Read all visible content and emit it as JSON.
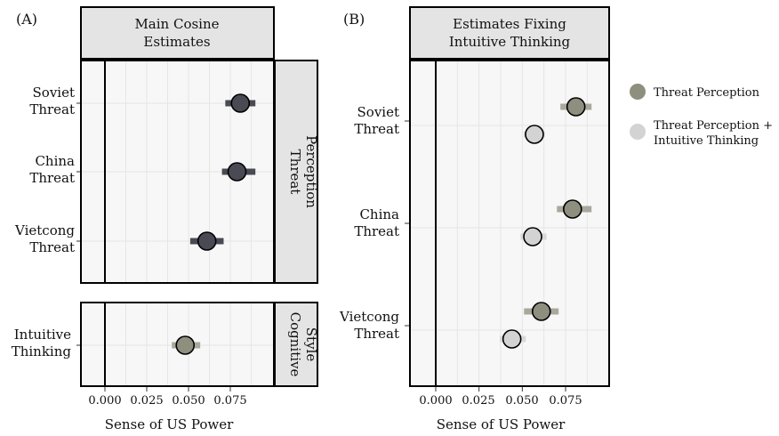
{
  "chart_data": [
    {
      "panel_label": "(A)",
      "type": "scatter",
      "title": "Main Cosine Estimates",
      "title_lines": [
        "Main Cosine",
        "Estimates"
      ],
      "xlabel": "Sense of US Power",
      "xlim": [
        -0.016,
        0.098
      ],
      "x_ticks": [
        "0.000",
        "0.025",
        "0.050",
        "0.075"
      ],
      "x_tick_values": [
        0,
        0.025,
        0.05,
        0.075
      ],
      "grid": true,
      "facets": [
        {
          "label": "Threat Perception",
          "label_lines": [
            "Threat",
            "Perception"
          ],
          "rows": [
            {
              "label_lines": [
                "Soviet",
                "Threat"
              ],
              "estimate": 0.081,
              "ci": [
                0.072,
                0.09
              ]
            },
            {
              "label_lines": [
                "China",
                "Threat"
              ],
              "estimate": 0.079,
              "ci": [
                0.07,
                0.09
              ]
            },
            {
              "label_lines": [
                "Vietcong",
                "Threat"
              ],
              "estimate": 0.061,
              "ci": [
                0.051,
                0.071
              ]
            }
          ],
          "color": "#4a4a55"
        },
        {
          "label": "Cognitive Style",
          "label_lines": [
            "Cognitive",
            "Style"
          ],
          "rows": [
            {
              "label_lines": [
                "Intuitive",
                "Thinking"
              ],
              "estimate": 0.048,
              "ci": [
                0.04,
                0.057
              ]
            }
          ],
          "color": "#8f8f80"
        }
      ]
    },
    {
      "panel_label": "(B)",
      "type": "scatter",
      "title": "Estimates Fixing Intuitive Thinking",
      "title_lines": [
        "Estimates Fixing",
        "Intuitive Thinking"
      ],
      "xlabel": "Sense of US Power",
      "xlim": [
        -0.016,
        0.098
      ],
      "x_ticks": [
        "0.000",
        "0.025",
        "0.050",
        "0.075"
      ],
      "x_tick_values": [
        0,
        0.025,
        0.05,
        0.075
      ],
      "grid": true,
      "categories": [
        {
          "label_lines": [
            "Soviet",
            "Threat"
          ]
        },
        {
          "label_lines": [
            "China",
            "Threat"
          ]
        },
        {
          "label_lines": [
            "Vietcong",
            "Threat"
          ]
        }
      ],
      "series": [
        {
          "name": "Threat Perception",
          "color": "#8f8f80",
          "bar_color": "#a8a89c",
          "values": [
            0.081,
            0.079,
            0.061
          ],
          "ci": [
            [
              0.072,
              0.09
            ],
            [
              0.07,
              0.09
            ],
            [
              0.051,
              0.071
            ]
          ]
        },
        {
          "name": "Threat Perception + Intuitive Thinking",
          "color": "#d3d3d3",
          "bar_color": "#d9d9d9",
          "values": [
            0.057,
            0.056,
            0.044
          ],
          "ci": [
            [
              0.051,
              0.063
            ],
            [
              0.049,
              0.064
            ],
            [
              0.037,
              0.052
            ]
          ]
        }
      ],
      "legend": {
        "placement": "right",
        "entries": [
          {
            "label_lines": [
              "Threat Perception"
            ]
          },
          {
            "label_lines": [
              "Threat Perception +",
              "Intuitive Thinking"
            ]
          }
        ]
      }
    }
  ]
}
